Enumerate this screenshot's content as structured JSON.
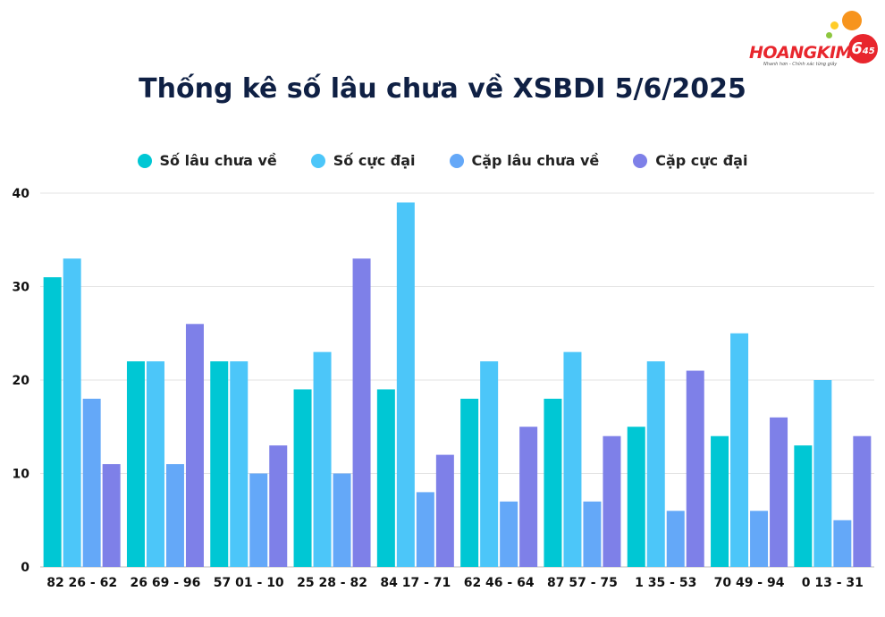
{
  "header": {
    "logo_text": "HOANGKIM",
    "logo_badge": "6",
    "logo_badge_sub": "45",
    "logo_tagline": "Nhanh hơn - Chính xác từng giây"
  },
  "chart_data": {
    "type": "bar",
    "title": "Thống kê số lâu chưa về XSBDI 5/6/2025",
    "xlabel": "",
    "ylabel": "",
    "ylim": [
      0,
      40
    ],
    "yticks": [
      0,
      10,
      20,
      30,
      40
    ],
    "grid": true,
    "legend_position": "top",
    "categories": [
      "82 26 - 62",
      "26 69 - 96",
      "57 01 - 10",
      "25 28 - 82",
      "84 17 - 71",
      "62 46 - 64",
      "87 57 - 75",
      "1 35 - 53",
      "70 49 - 94",
      "0 13 - 31"
    ],
    "series": [
      {
        "name": "Số lâu chưa về",
        "color": "#00c7d4",
        "values": [
          31,
          22,
          22,
          19,
          19,
          18,
          18,
          15,
          14,
          13
        ]
      },
      {
        "name": "Số cực đại",
        "color": "#4cc6f9",
        "values": [
          33,
          22,
          22,
          23,
          39,
          22,
          23,
          22,
          25,
          20
        ]
      },
      {
        "name": "Cặp lâu chưa về",
        "color": "#64a8f8",
        "values": [
          18,
          11,
          10,
          10,
          8,
          7,
          7,
          6,
          6,
          5
        ]
      },
      {
        "name": "Cặp cực đại",
        "color": "#7e80e8",
        "values": [
          11,
          26,
          13,
          33,
          12,
          15,
          14,
          21,
          16,
          14
        ]
      }
    ]
  }
}
